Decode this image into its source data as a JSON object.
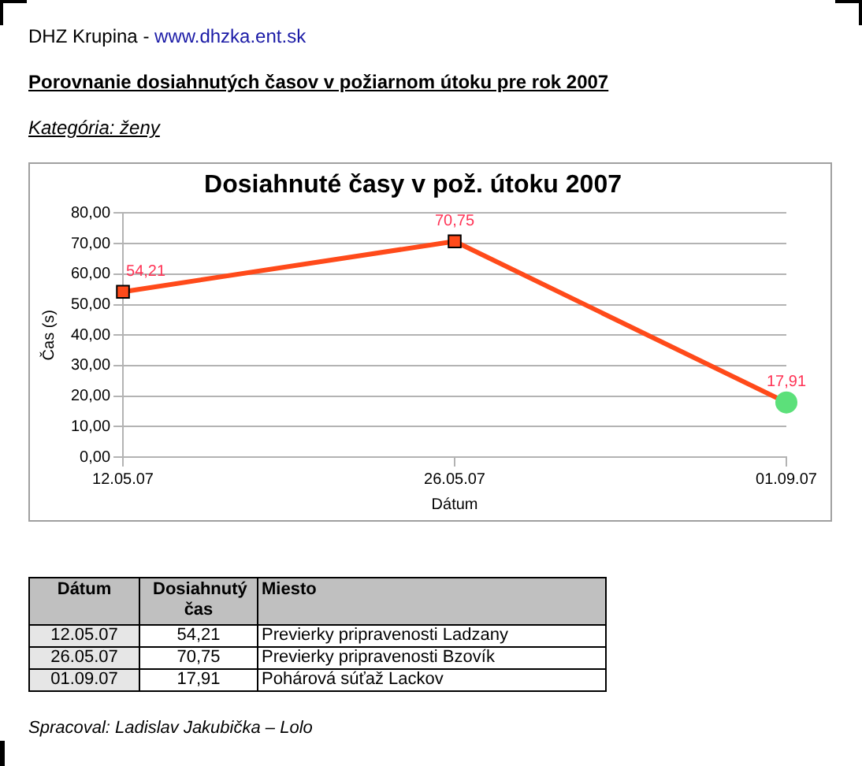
{
  "chart_data": {
    "type": "line",
    "title": "Dosiahnuté časy v pož. útoku 2007",
    "xlabel": "Dátum",
    "ylabel": "Čas (s)",
    "categories": [
      "12.05.07",
      "26.05.07",
      "01.09.07"
    ],
    "series": [
      {
        "type": "line",
        "color": "#ff4a1a",
        "values": [
          54.21,
          70.75,
          17.91
        ],
        "marker": "none",
        "value_labels": [
          "54,21",
          "70,75",
          "17,91"
        ]
      },
      {
        "type": "scatter",
        "color": "#ff4a1a",
        "values": [
          54.21,
          70.75,
          null
        ],
        "marker": "square"
      },
      {
        "type": "scatter",
        "color": "#5ce07a",
        "values": [
          null,
          null,
          17.91
        ],
        "marker": "circle"
      }
    ],
    "ylim": [
      0,
      80
    ],
    "yticks": [
      {
        "value": 0,
        "label": "0,00"
      },
      {
        "value": 10,
        "label": "10,00"
      },
      {
        "value": 20,
        "label": "20,00"
      },
      {
        "value": 30,
        "label": "30,00"
      },
      {
        "value": 40,
        "label": "40,00"
      },
      {
        "value": 50,
        "label": "50,00"
      },
      {
        "value": 60,
        "label": "60,00"
      },
      {
        "value": 70,
        "label": "70,00"
      },
      {
        "value": 80,
        "label": "80,00"
      }
    ],
    "grid": "y",
    "annotations": [
      "DHZ Krupina -",
      "www.dhzka.ent.sk",
      "Porovnanie dosiahnutých časov v požiarnom útoku pre rok 2007",
      "Kategória: ženy",
      "Dátum",
      "Dosiahnutý čas",
      "Miesto",
      "Previerky pripravenosti Ladzany",
      "Previerky pripravenosti Bzovík",
      "Pohárová súťaž Lackov",
      "Spracoval: Ladislav Jakubička – Lolo"
    ]
  }
}
